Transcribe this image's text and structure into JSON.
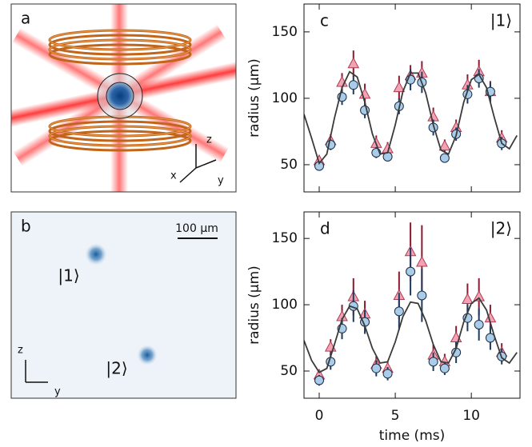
{
  "panels": {
    "a": {
      "letter": "a",
      "axes": [
        "z",
        "x",
        "y"
      ]
    },
    "b": {
      "letter": "b",
      "scale": "100 µm",
      "state1": "|1⟩",
      "state2": "|2⟩",
      "axes": [
        "z",
        "y"
      ]
    }
  },
  "chart_data": [
    {
      "type": "scatter",
      "letter": "c",
      "state": "|1⟩",
      "ylabel": "radius (µm)",
      "xlim": [
        -1,
        13.2
      ],
      "ylim": [
        29.5,
        171
      ],
      "xticks": [
        0,
        5,
        10
      ],
      "yticks": [
        50,
        100,
        150
      ],
      "show_xtick_labels": false,
      "x": [
        0,
        0.75,
        1.5,
        2.25,
        3,
        3.75,
        4.5,
        5.25,
        6,
        6.75,
        7.5,
        8.25,
        9,
        9.75,
        10.5,
        11.25,
        12
      ],
      "series": [
        {
          "marker": "triangle",
          "color": "#f2a3b3",
          "edge": "#b03a55",
          "bar_color": "#8b1a2e",
          "values": [
            53,
            68,
            112,
            126,
            103,
            66,
            62,
            108,
            117,
            119,
            86,
            64,
            78,
            110,
            120,
            105,
            70
          ],
          "errors": [
            4,
            5,
            7,
            10,
            8,
            6,
            5,
            9,
            8,
            9,
            7,
            5,
            6,
            8,
            9,
            8,
            6
          ]
        },
        {
          "marker": "circle",
          "color": "#a9cde9",
          "edge": "#1c2c44",
          "bar_color": "#1f3a5f",
          "values": [
            49,
            65,
            101,
            110,
            91,
            59,
            56,
            94,
            114,
            112,
            78,
            55,
            73,
            103,
            115,
            105,
            66
          ],
          "errors": [
            3,
            4,
            6,
            7,
            6,
            4,
            3,
            6,
            8,
            8,
            6,
            3,
            5,
            7,
            7,
            7,
            5
          ]
        },
        {
          "marker": "line",
          "color": "#3a3a3a",
          "x": [
            -1,
            -0.5,
            0,
            0.5,
            1,
            1.5,
            2,
            2.5,
            3,
            3.5,
            4,
            4.5,
            5,
            5.5,
            6,
            6.5,
            7,
            7.5,
            8,
            8.5,
            9,
            9.5,
            10,
            10.5,
            11,
            11.5,
            12,
            12.5,
            13
          ],
          "values": [
            88,
            70,
            51,
            58,
            85,
            108,
            120,
            116,
            97,
            73,
            58,
            59,
            80,
            105,
            119,
            119,
            104,
            80,
            61,
            58,
            72,
            97,
            114,
            118,
            108,
            86,
            66,
            62,
            72
          ]
        }
      ]
    },
    {
      "type": "scatter",
      "letter": "d",
      "state": "|2⟩",
      "ylabel": "radius (µm)",
      "xlabel": "time (ms)",
      "xlim": [
        -1,
        13.2
      ],
      "ylim": [
        29.5,
        170
      ],
      "xticks": [
        0,
        5,
        10
      ],
      "yticks": [
        50,
        100,
        150
      ],
      "show_xtick_labels": true,
      "x": [
        0,
        0.75,
        1.5,
        2.25,
        3,
        3.75,
        4.5,
        5.25,
        6,
        6.75,
        7.5,
        8.25,
        9,
        9.75,
        10.5,
        11.25,
        12
      ],
      "series": [
        {
          "marker": "triangle",
          "color": "#f2a3b3",
          "edge": "#b03a55",
          "bar_color": "#8b1a2e",
          "values": [
            47,
            68,
            91,
            106,
            93,
            55,
            52,
            107,
            140,
            132,
            62,
            57,
            75,
            104,
            106,
            90,
            64
          ],
          "errors": [
            4,
            6,
            9,
            14,
            10,
            6,
            5,
            18,
            22,
            28,
            8,
            6,
            9,
            12,
            14,
            10,
            7
          ]
        },
        {
          "marker": "circle",
          "color": "#a9cde9",
          "edge": "#1c2c44",
          "bar_color": "#1f3a5f",
          "values": [
            43,
            57,
            82,
            99,
            87,
            52,
            48,
            95,
            125,
            107,
            57,
            52,
            64,
            90,
            85,
            75,
            61
          ],
          "errors": [
            4,
            6,
            8,
            12,
            9,
            6,
            5,
            14,
            18,
            20,
            7,
            5,
            8,
            10,
            12,
            9,
            6
          ]
        },
        {
          "marker": "line",
          "color": "#3a3a3a",
          "x": [
            -1,
            -0.5,
            0,
            0.5,
            1,
            1.5,
            2,
            2.5,
            3,
            3.5,
            4,
            4.5,
            5,
            5.5,
            6,
            6.5,
            7,
            7.5,
            8,
            8.5,
            9,
            9.5,
            10,
            10.5,
            11,
            11.5,
            12,
            12.5,
            13
          ],
          "values": [
            73,
            58,
            49,
            52,
            70,
            89,
            99,
            97,
            84,
            67,
            56,
            57,
            72,
            91,
            102,
            101,
            88,
            70,
            57,
            56,
            67,
            87,
            101,
            105,
            96,
            77,
            60,
            56,
            64
          ]
        }
      ]
    }
  ]
}
